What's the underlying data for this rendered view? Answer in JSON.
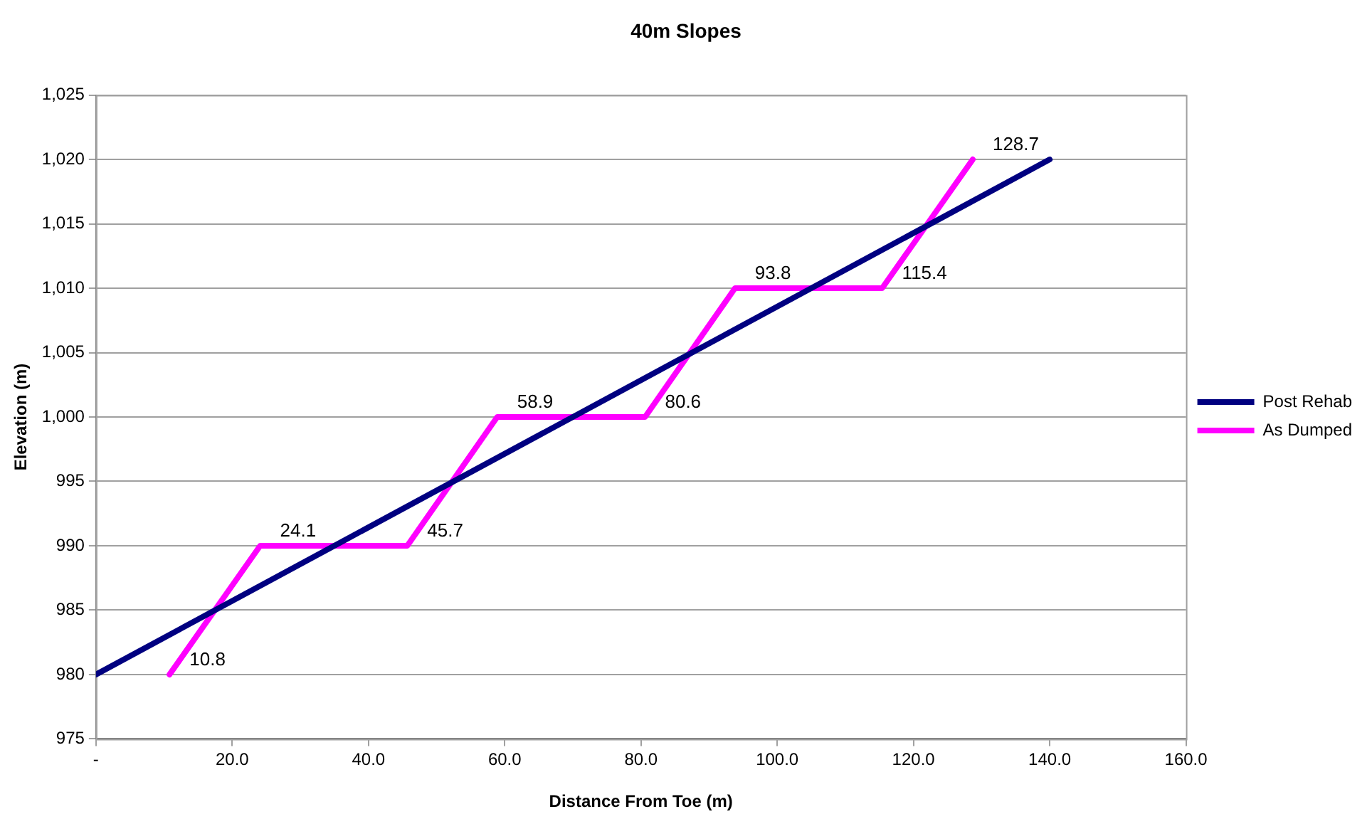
{
  "chart_data": {
    "type": "line",
    "title": "40m Slopes",
    "xlabel": "Distance From Toe (m)",
    "ylabel": "Elevation (m)",
    "series": [
      {
        "name": "Post Rehab",
        "color": "#000080",
        "x": [
          0,
          140
        ],
        "values": [
          980,
          1020
        ]
      },
      {
        "name": "As Dumped",
        "color": "#ff00ff",
        "x": [
          10.8,
          24.1,
          45.7,
          58.9,
          80.6,
          93.8,
          115.4,
          128.7
        ],
        "values": [
          980,
          990,
          990,
          1000,
          1000,
          1010,
          1010,
          1020
        ]
      }
    ],
    "annotations": [
      {
        "text": "10.8",
        "x": 10.8,
        "y": 980
      },
      {
        "text": "24.1",
        "x": 24.1,
        "y": 990
      },
      {
        "text": "45.7",
        "x": 45.7,
        "y": 990
      },
      {
        "text": "58.9",
        "x": 58.9,
        "y": 1000
      },
      {
        "text": "80.6",
        "x": 80.6,
        "y": 1000
      },
      {
        "text": "93.8",
        "x": 93.8,
        "y": 1010
      },
      {
        "text": "115.4",
        "x": 115.4,
        "y": 1010
      },
      {
        "text": "128.7",
        "x": 128.7,
        "y": 1020
      }
    ],
    "xlim": [
      0,
      160
    ],
    "xticks": [
      {
        "value": 0,
        "label": "-"
      },
      {
        "value": 20,
        "label": "20.0"
      },
      {
        "value": 40,
        "label": "40.0"
      },
      {
        "value": 60,
        "label": "60.0"
      },
      {
        "value": 80,
        "label": "80.0"
      },
      {
        "value": 100,
        "label": "100.0"
      },
      {
        "value": 120,
        "label": "120.0"
      },
      {
        "value": 140,
        "label": "140.0"
      },
      {
        "value": 160,
        "label": "160.0"
      }
    ],
    "ylim": [
      975,
      1025
    ],
    "yticks": [
      975,
      980,
      985,
      990,
      995,
      {
        "value": 1000,
        "label": "1,000"
      },
      {
        "value": 1005,
        "label": "1,005"
      },
      {
        "value": 1010,
        "label": "1,010"
      },
      {
        "value": 1015,
        "label": "1,015"
      },
      {
        "value": 1020,
        "label": "1,020"
      },
      {
        "value": 1025,
        "label": "1,025"
      }
    ],
    "grid": "y",
    "legend": "right",
    "marker": "none",
    "line_style": "solid"
  }
}
